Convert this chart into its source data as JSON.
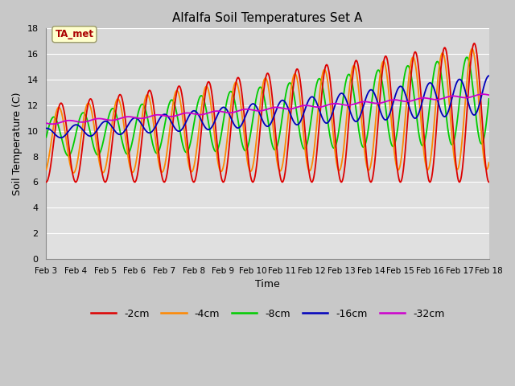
{
  "title": "Alfalfa Soil Temperatures Set A",
  "xlabel": "Time",
  "ylabel": "Soil Temperature (C)",
  "ylim": [
    0,
    18
  ],
  "yticks": [
    0,
    2,
    4,
    6,
    8,
    10,
    12,
    14,
    16,
    18
  ],
  "x_labels": [
    "Feb 3",
    "Feb 4",
    "Feb 5",
    "Feb 6",
    "Feb 7",
    "Feb 8",
    "Feb 9",
    "Feb 10",
    "Feb 11",
    "Feb 12",
    "Feb 13",
    "Feb 14",
    "Feb 15",
    "Feb 16",
    "Feb 17",
    "Feb 18"
  ],
  "colors": {
    "-2cm": "#dd0000",
    "-4cm": "#ff8800",
    "-8cm": "#00cc00",
    "-16cm": "#0000bb",
    "-32cm": "#cc00cc"
  },
  "linewidth": 1.3,
  "bg_color": "#e8e8e8",
  "plot_bg_top": "#d8d8d8",
  "plot_bg_bottom": "#e8e8e8",
  "grid_color": "#ffffff",
  "annotation_text": "TA_met",
  "annotation_bg": "#ffffcc",
  "annotation_border": "#999966"
}
